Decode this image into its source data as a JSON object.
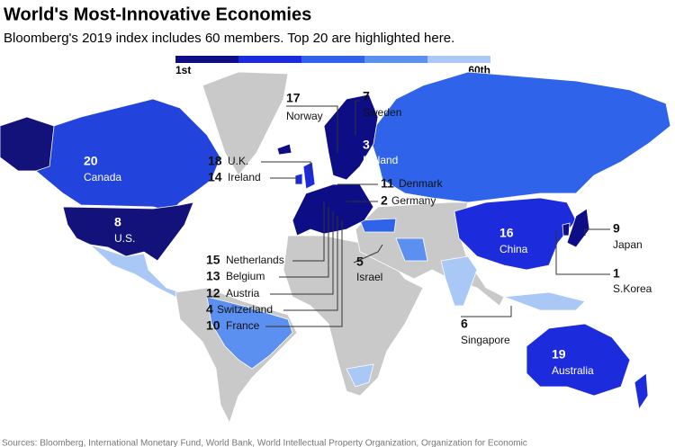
{
  "header": {
    "title": "World's Most-Innovative Economies",
    "subtitle": "Bloomberg's 2019 index includes 60 members. Top 20 are highlighted here."
  },
  "legend": {
    "start_label": "1st",
    "end_label": "60th",
    "colors": [
      "#0d0d86",
      "#1c2bdc",
      "#2f63ea",
      "#5b8ff0",
      "#a9c8f6"
    ]
  },
  "countries": [
    {
      "rank": 17,
      "name": "Norway"
    },
    {
      "rank": 7,
      "name": "Sweden"
    },
    {
      "rank": 3,
      "name": "Finland"
    },
    {
      "rank": 18,
      "name": "U.K."
    },
    {
      "rank": 14,
      "name": "Ireland"
    },
    {
      "rank": 20,
      "name": "Canada"
    },
    {
      "rank": 8,
      "name": "U.S."
    },
    {
      "rank": 11,
      "name": "Denmark"
    },
    {
      "rank": 2,
      "name": "Germany"
    },
    {
      "rank": 9,
      "name": "Japan"
    },
    {
      "rank": 16,
      "name": "China"
    },
    {
      "rank": 5,
      "name": "Israel"
    },
    {
      "rank": 1,
      "name": "S.Korea"
    },
    {
      "rank": 15,
      "name": "Netherlands"
    },
    {
      "rank": 13,
      "name": "Belgium"
    },
    {
      "rank": 12,
      "name": "Austria"
    },
    {
      "rank": 4,
      "name": "Switzerland"
    },
    {
      "rank": 10,
      "name": "France"
    },
    {
      "rank": 6,
      "name": "Singapore"
    },
    {
      "rank": 19,
      "name": "Australia"
    }
  ],
  "source": "Sources: Bloomberg, International Monetary Fund, World Bank, World Intellectual Property Organization, Organization for Economic"
}
